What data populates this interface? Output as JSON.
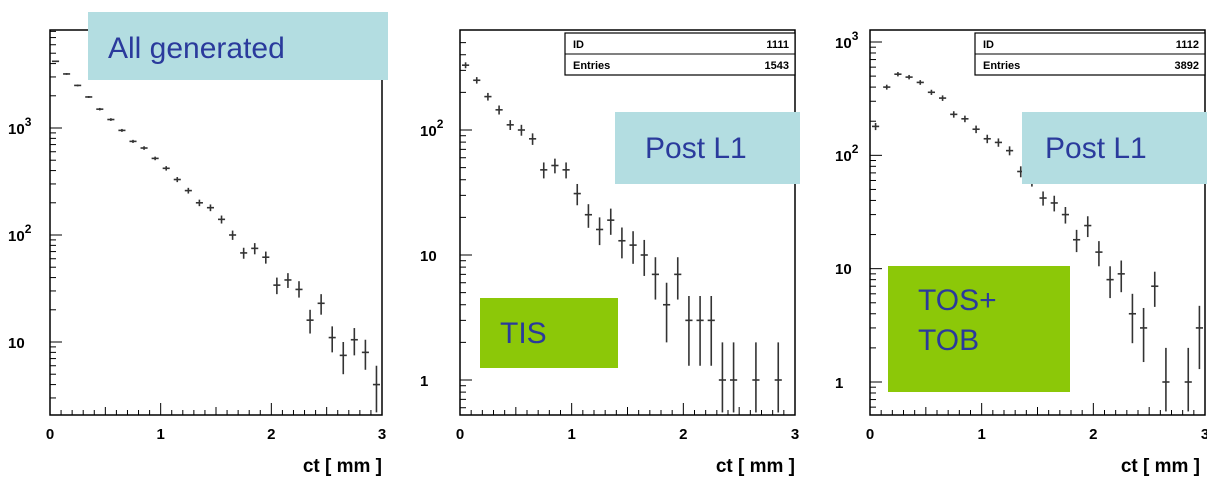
{
  "colors": {
    "blue_box": "#b3dde1",
    "blue_text": "#2a3a9c",
    "green_box": "#8cc808",
    "green_text": "#2a3a9c",
    "marker": "#333333"
  },
  "chart_data": [
    {
      "type": "scatter",
      "log_y": true,
      "xlim": [
        0,
        3
      ],
      "ylim": [
        2.2,
        12000
      ],
      "xticks": [
        "0",
        "1",
        "2",
        "3"
      ],
      "yticks": [
        "10",
        "10 2",
        "10 3"
      ],
      "xlabel": "ct [ mm ]",
      "callouts": [
        {
          "text": "All generated",
          "style": "blue"
        }
      ],
      "points": [
        {
          "x": 0.05,
          "y": 4200,
          "lo": 4130,
          "hi": 4270
        },
        {
          "x": 0.15,
          "y": 3200,
          "lo": 3140,
          "hi": 3260
        },
        {
          "x": 0.25,
          "y": 2500,
          "lo": 2450,
          "hi": 2550
        },
        {
          "x": 0.35,
          "y": 1950,
          "lo": 1910,
          "hi": 1990
        },
        {
          "x": 0.45,
          "y": 1500,
          "lo": 1460,
          "hi": 1540
        },
        {
          "x": 0.55,
          "y": 1200,
          "lo": 1165,
          "hi": 1235
        },
        {
          "x": 0.65,
          "y": 950,
          "lo": 920,
          "hi": 980
        },
        {
          "x": 0.75,
          "y": 750,
          "lo": 725,
          "hi": 775
        },
        {
          "x": 0.85,
          "y": 650,
          "lo": 625,
          "hi": 675
        },
        {
          "x": 0.95,
          "y": 520,
          "lo": 500,
          "hi": 540
        },
        {
          "x": 1.05,
          "y": 420,
          "lo": 400,
          "hi": 440
        },
        {
          "x": 1.15,
          "y": 330,
          "lo": 312,
          "hi": 348
        },
        {
          "x": 1.25,
          "y": 260,
          "lo": 244,
          "hi": 276
        },
        {
          "x": 1.35,
          "y": 200,
          "lo": 186,
          "hi": 214
        },
        {
          "x": 1.45,
          "y": 180,
          "lo": 167,
          "hi": 193
        },
        {
          "x": 1.55,
          "y": 140,
          "lo": 128,
          "hi": 152
        },
        {
          "x": 1.65,
          "y": 100,
          "lo": 90,
          "hi": 110
        },
        {
          "x": 1.75,
          "y": 68,
          "lo": 60,
          "hi": 76
        },
        {
          "x": 1.85,
          "y": 75,
          "lo": 66,
          "hi": 84
        },
        {
          "x": 1.95,
          "y": 62,
          "lo": 54,
          "hi": 70
        },
        {
          "x": 2.05,
          "y": 34,
          "lo": 28,
          "hi": 40
        },
        {
          "x": 2.15,
          "y": 38,
          "lo": 32,
          "hi": 44
        },
        {
          "x": 2.25,
          "y": 31,
          "lo": 26,
          "hi": 37
        },
        {
          "x": 2.35,
          "y": 16,
          "lo": 12,
          "hi": 20
        },
        {
          "x": 2.45,
          "y": 23,
          "lo": 18,
          "hi": 28
        },
        {
          "x": 2.55,
          "y": 11,
          "lo": 8,
          "hi": 14
        },
        {
          "x": 2.65,
          "y": 7.5,
          "lo": 5,
          "hi": 10
        },
        {
          "x": 2.75,
          "y": 10.5,
          "lo": 7.5,
          "hi": 13.5
        },
        {
          "x": 2.85,
          "y": 8,
          "lo": 5.5,
          "hi": 10.5
        },
        {
          "x": 2.95,
          "y": 4,
          "lo": 2.2,
          "hi": 6
        }
      ]
    },
    {
      "type": "scatter",
      "log_y": true,
      "xlim": [
        0,
        3
      ],
      "ylim": [
        0.55,
        520
      ],
      "xticks": [
        "0",
        "1",
        "2",
        "3"
      ],
      "yticks": [
        "1",
        "10",
        "10 2"
      ],
      "xlabel": "ct [ mm ]",
      "stats": [
        {
          "label": "ID",
          "value": "1111"
        },
        {
          "label": "Entries",
          "value": "1543"
        }
      ],
      "callouts": [
        {
          "text": "Post L1",
          "style": "blue"
        },
        {
          "text": "TIS",
          "style": "green"
        }
      ],
      "points": [
        {
          "x": 0.05,
          "y": 330,
          "lo": 312,
          "hi": 348
        },
        {
          "x": 0.15,
          "y": 250,
          "lo": 235,
          "hi": 265
        },
        {
          "x": 0.25,
          "y": 185,
          "lo": 172,
          "hi": 198
        },
        {
          "x": 0.35,
          "y": 145,
          "lo": 133,
          "hi": 157
        },
        {
          "x": 0.45,
          "y": 110,
          "lo": 100,
          "hi": 120
        },
        {
          "x": 0.55,
          "y": 100,
          "lo": 90,
          "hi": 110
        },
        {
          "x": 0.65,
          "y": 85,
          "lo": 76,
          "hi": 94
        },
        {
          "x": 0.75,
          "y": 48,
          "lo": 41,
          "hi": 55
        },
        {
          "x": 0.85,
          "y": 52,
          "lo": 45,
          "hi": 59
        },
        {
          "x": 0.95,
          "y": 48,
          "lo": 41,
          "hi": 55
        },
        {
          "x": 1.05,
          "y": 31,
          "lo": 25,
          "hi": 37
        },
        {
          "x": 1.15,
          "y": 21,
          "lo": 16.5,
          "hi": 25.5
        },
        {
          "x": 1.25,
          "y": 16,
          "lo": 12,
          "hi": 20
        },
        {
          "x": 1.35,
          "y": 19,
          "lo": 14.5,
          "hi": 23.5
        },
        {
          "x": 1.45,
          "y": 13,
          "lo": 9.4,
          "hi": 16.6
        },
        {
          "x": 1.55,
          "y": 12,
          "lo": 8.5,
          "hi": 15.5
        },
        {
          "x": 1.65,
          "y": 10,
          "lo": 6.8,
          "hi": 13.2
        },
        {
          "x": 1.75,
          "y": 7,
          "lo": 4.4,
          "hi": 9.6
        },
        {
          "x": 1.85,
          "y": 4,
          "lo": 2,
          "hi": 6
        },
        {
          "x": 1.95,
          "y": 7,
          "lo": 4.4,
          "hi": 9.6
        },
        {
          "x": 2.05,
          "y": 3,
          "lo": 1.3,
          "hi": 4.7
        },
        {
          "x": 2.15,
          "y": 3,
          "lo": 1.3,
          "hi": 4.7
        },
        {
          "x": 2.25,
          "y": 3,
          "lo": 1.3,
          "hi": 4.7
        },
        {
          "x": 2.35,
          "y": 1,
          "lo": 0.55,
          "hi": 2
        },
        {
          "x": 2.45,
          "y": 1,
          "lo": 0.55,
          "hi": 2
        },
        {
          "x": 2.65,
          "y": 1,
          "lo": 0.55,
          "hi": 2
        },
        {
          "x": 2.85,
          "y": 1,
          "lo": 0.55,
          "hi": 2
        }
      ]
    },
    {
      "type": "scatter",
      "log_y": true,
      "xlim": [
        0,
        3
      ],
      "ylim": [
        0.55,
        1050
      ],
      "xticks": [
        "0",
        "1",
        "2",
        "3"
      ],
      "yticks": [
        "1",
        "10",
        "10 2",
        "10 3"
      ],
      "xlabel": "ct [ mm ]",
      "stats": [
        {
          "label": "ID",
          "value": "1112"
        },
        {
          "label": "Entries",
          "value": "3892"
        }
      ],
      "callouts": [
        {
          "text": "Post L1",
          "style": "blue"
        },
        {
          "text": "TOS+",
          "style": "green"
        },
        {
          "text": "TOB",
          "style": "green"
        }
      ],
      "points": [
        {
          "x": 0.05,
          "y": 180,
          "lo": 167,
          "hi": 193
        },
        {
          "x": 0.15,
          "y": 400,
          "lo": 380,
          "hi": 420
        },
        {
          "x": 0.25,
          "y": 520,
          "lo": 497,
          "hi": 543
        },
        {
          "x": 0.35,
          "y": 490,
          "lo": 468,
          "hi": 512
        },
        {
          "x": 0.45,
          "y": 440,
          "lo": 419,
          "hi": 461
        },
        {
          "x": 0.55,
          "y": 360,
          "lo": 341,
          "hi": 379
        },
        {
          "x": 0.65,
          "y": 320,
          "lo": 302,
          "hi": 338
        },
        {
          "x": 0.75,
          "y": 230,
          "lo": 215,
          "hi": 245
        },
        {
          "x": 0.85,
          "y": 210,
          "lo": 196,
          "hi": 224
        },
        {
          "x": 0.95,
          "y": 170,
          "lo": 157,
          "hi": 183
        },
        {
          "x": 1.05,
          "y": 140,
          "lo": 128,
          "hi": 152
        },
        {
          "x": 1.15,
          "y": 130,
          "lo": 119,
          "hi": 141
        },
        {
          "x": 1.25,
          "y": 110,
          "lo": 100,
          "hi": 120
        },
        {
          "x": 1.35,
          "y": 72,
          "lo": 64,
          "hi": 80
        },
        {
          "x": 1.45,
          "y": 60,
          "lo": 53,
          "hi": 67
        },
        {
          "x": 1.55,
          "y": 42,
          "lo": 36,
          "hi": 48
        },
        {
          "x": 1.65,
          "y": 38,
          "lo": 32,
          "hi": 44
        },
        {
          "x": 1.75,
          "y": 30,
          "lo": 25,
          "hi": 35
        },
        {
          "x": 1.85,
          "y": 18,
          "lo": 14,
          "hi": 22
        },
        {
          "x": 1.95,
          "y": 24,
          "lo": 19,
          "hi": 29
        },
        {
          "x": 2.05,
          "y": 14,
          "lo": 10.5,
          "hi": 17.5
        },
        {
          "x": 2.15,
          "y": 8,
          "lo": 5.5,
          "hi": 10.5
        },
        {
          "x": 2.25,
          "y": 9,
          "lo": 6.2,
          "hi": 11.8
        },
        {
          "x": 2.35,
          "y": 4,
          "lo": 2.2,
          "hi": 6
        },
        {
          "x": 2.45,
          "y": 3,
          "lo": 1.5,
          "hi": 4.5
        },
        {
          "x": 2.55,
          "y": 7,
          "lo": 4.6,
          "hi": 9.4
        },
        {
          "x": 2.65,
          "y": 1,
          "lo": 0.55,
          "hi": 2
        },
        {
          "x": 2.85,
          "y": 1,
          "lo": 0.55,
          "hi": 2
        },
        {
          "x": 2.95,
          "y": 3,
          "lo": 1.3,
          "hi": 4.7
        }
      ]
    }
  ]
}
